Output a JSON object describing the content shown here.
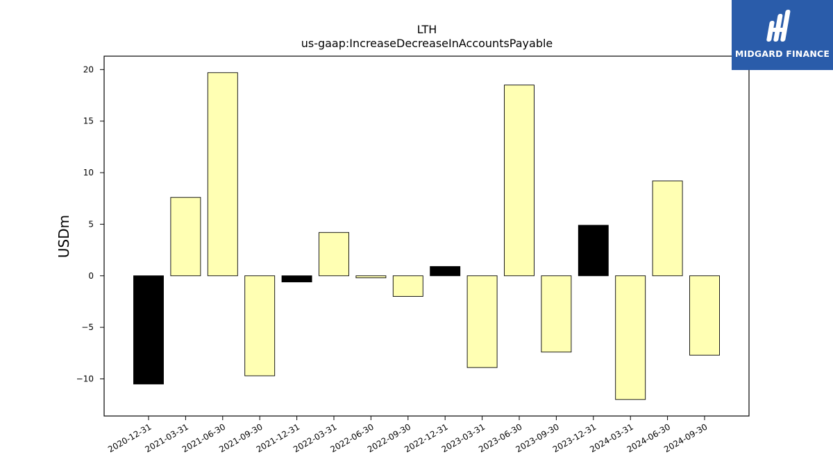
{
  "chart_data": {
    "type": "bar",
    "title": "LTH",
    "subtitle": "us-gaap:IncreaseDecreaseInAccountsPayable",
    "xlabel": "",
    "ylabel": "USDm",
    "ylim": [
      -13.6,
      21.3
    ],
    "yticks": [
      -10,
      -5,
      0,
      5,
      10,
      15,
      20
    ],
    "ytick_labels": [
      "−10",
      "−5",
      "0",
      "5",
      "10",
      "15",
      "20"
    ],
    "grid": false,
    "categories": [
      "2020-12-31",
      "2021-03-31",
      "2021-06-30",
      "2021-09-30",
      "2021-12-31",
      "2022-03-31",
      "2022-06-30",
      "2022-09-30",
      "2022-12-31",
      "2023-03-31",
      "2023-06-30",
      "2023-09-30",
      "2023-12-31",
      "2024-03-31",
      "2024-06-30",
      "2024-09-30"
    ],
    "values": [
      -10.5,
      7.6,
      19.7,
      -9.7,
      -0.6,
      4.2,
      -0.2,
      -2.0,
      0.9,
      -8.9,
      18.5,
      -7.4,
      4.9,
      -12.0,
      9.2,
      -7.7
    ],
    "bar_colors": [
      "#000000",
      "#ffffb3",
      "#ffffb3",
      "#ffffb3",
      "#000000",
      "#ffffb3",
      "#ffffb3",
      "#ffffb3",
      "#000000",
      "#ffffb3",
      "#ffffb3",
      "#ffffb3",
      "#000000",
      "#ffffb3",
      "#ffffb3",
      "#ffffb3"
    ]
  },
  "logo": {
    "text": "MIDGARD FINANCE",
    "background": "#2a5caa"
  }
}
